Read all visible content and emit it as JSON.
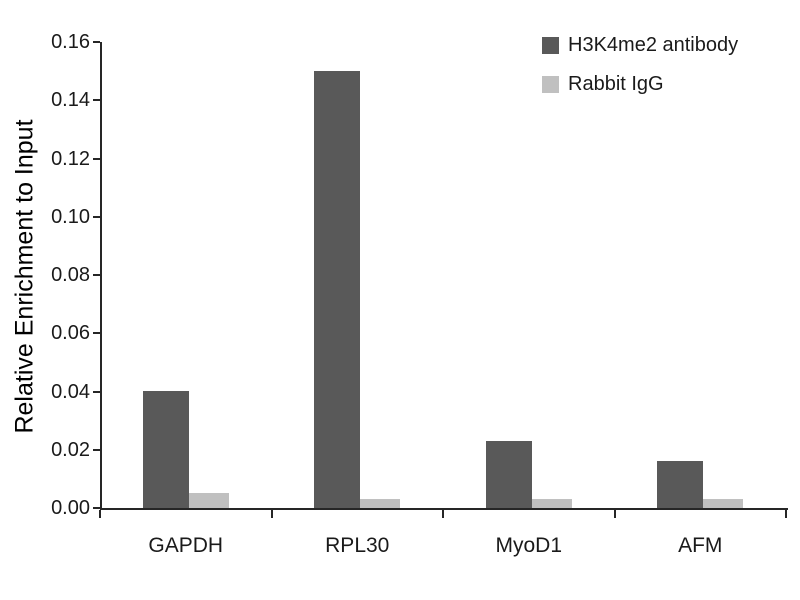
{
  "chart_data": {
    "type": "bar",
    "title": "",
    "xlabel": "",
    "ylabel": "Relative Enrichment to Input",
    "ylim": [
      0,
      0.16
    ],
    "ytick_step": 0.02,
    "ytick_decimals": 2,
    "grid": false,
    "legend_position": "top-right",
    "categories": [
      "GAPDH",
      "RPL30",
      "MyoD1",
      "AFM"
    ],
    "series": [
      {
        "name": "H3K4me2 antibody",
        "color": "#595959",
        "values": [
          0.04,
          0.15,
          0.023,
          0.016
        ]
      },
      {
        "name": "Rabbit IgG",
        "color": "#c0c0c0",
        "values": [
          0.005,
          0.003,
          0.003,
          0.003
        ]
      }
    ]
  }
}
